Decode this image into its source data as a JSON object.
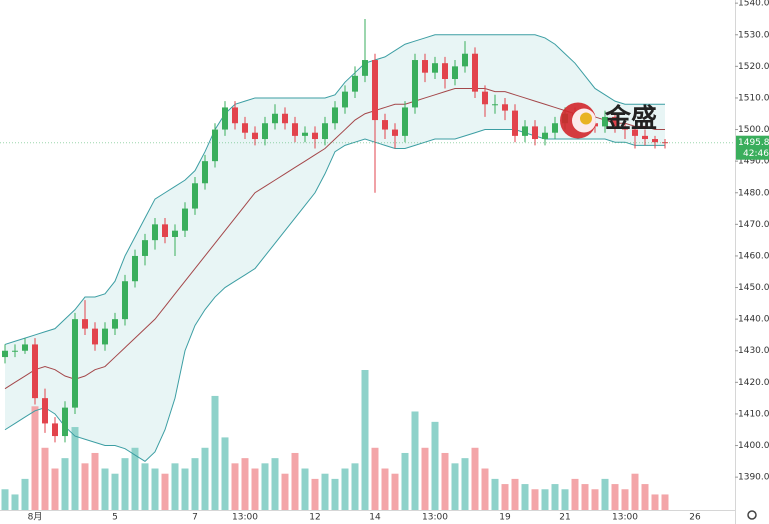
{
  "chart_data": {
    "type": "candlestick",
    "categories": [
      null,
      null,
      null,
      "8月",
      null,
      null,
      null,
      null,
      null,
      null,
      null,
      "5",
      null,
      null,
      null,
      null,
      null,
      null,
      null,
      "7",
      null,
      null,
      null,
      null,
      "13:00",
      null,
      null,
      null,
      null,
      null,
      null,
      "12",
      null,
      null,
      null,
      null,
      null,
      "14",
      null,
      null,
      null,
      null,
      null,
      "13:00",
      null,
      null,
      null,
      null,
      null,
      null,
      "19",
      null,
      null,
      null,
      null,
      null,
      "21",
      null,
      null,
      null,
      null,
      null,
      "13:00",
      null,
      null,
      null,
      null,
      null,
      null,
      "26"
    ],
    "ohlc": [
      [
        1428,
        1432,
        1426,
        1430
      ],
      [
        1430,
        1432,
        1428,
        1430
      ],
      [
        1430,
        1434,
        1429,
        1432
      ],
      [
        1432,
        1434,
        1413,
        1415
      ],
      [
        1415,
        1418,
        1404,
        1407
      ],
      [
        1407,
        1409,
        1401,
        1403
      ],
      [
        1403,
        1414,
        1401,
        1412
      ],
      [
        1412,
        1442,
        1410,
        1440
      ],
      [
        1440,
        1446,
        1435,
        1437
      ],
      [
        1437,
        1439,
        1430,
        1432
      ],
      [
        1432,
        1439,
        1430,
        1437
      ],
      [
        1437,
        1442,
        1435,
        1440
      ],
      [
        1440,
        1454,
        1438,
        1452
      ],
      [
        1452,
        1462,
        1450,
        1460
      ],
      [
        1460,
        1467,
        1457,
        1465
      ],
      [
        1465,
        1472,
        1462,
        1470
      ],
      [
        1470,
        1472,
        1464,
        1466
      ],
      [
        1466,
        1470,
        1460,
        1468
      ],
      [
        1468,
        1477,
        1466,
        1475
      ],
      [
        1475,
        1485,
        1473,
        1483
      ],
      [
        1483,
        1492,
        1481,
        1490
      ],
      [
        1490,
        1502,
        1488,
        1500
      ],
      [
        1500,
        1509,
        1498,
        1507
      ],
      [
        1507,
        1509,
        1500,
        1502
      ],
      [
        1502,
        1504,
        1497,
        1499
      ],
      [
        1499,
        1501,
        1495,
        1497
      ],
      [
        1497,
        1504,
        1495,
        1502
      ],
      [
        1502,
        1508,
        1500,
        1505
      ],
      [
        1505,
        1507,
        1500,
        1502
      ],
      [
        1502,
        1504,
        1496,
        1498
      ],
      [
        1498,
        1501,
        1496,
        1499
      ],
      [
        1499,
        1501,
        1494,
        1497
      ],
      [
        1497,
        1504,
        1495,
        1502
      ],
      [
        1502,
        1509,
        1500,
        1507
      ],
      [
        1507,
        1514,
        1505,
        1512
      ],
      [
        1512,
        1520,
        1510,
        1517
      ],
      [
        1517,
        1535,
        1515,
        1522
      ],
      [
        1522,
        1524,
        1480,
        1503
      ],
      [
        1503,
        1505,
        1497,
        1500
      ],
      [
        1500,
        1502,
        1494,
        1498
      ],
      [
        1498,
        1509,
        1496,
        1507
      ],
      [
        1507,
        1524,
        1505,
        1522
      ],
      [
        1522,
        1524,
        1515,
        1518
      ],
      [
        1518,
        1523,
        1516,
        1521
      ],
      [
        1521,
        1523,
        1513,
        1516
      ],
      [
        1516,
        1522,
        1514,
        1520
      ],
      [
        1520,
        1528,
        1518,
        1524
      ],
      [
        1524,
        1526,
        1510,
        1512
      ],
      [
        1512,
        1514,
        1504,
        1508
      ],
      [
        1508,
        1511,
        1505,
        1508
      ],
      [
        1508,
        1510,
        1503,
        1506
      ],
      [
        1506,
        1508,
        1496,
        1498
      ],
      [
        1498,
        1503,
        1496,
        1501
      ],
      [
        1501,
        1503,
        1495,
        1497
      ],
      [
        1497,
        1501,
        1495,
        1499
      ],
      [
        1499,
        1504,
        1497,
        1502
      ],
      [
        1502,
        1507,
        1500,
        1505
      ],
      [
        1505,
        1507,
        1501,
        1503
      ],
      [
        1503,
        1505,
        1500,
        1502
      ],
      [
        1502,
        1503,
        1499,
        1501
      ],
      [
        1501,
        1506,
        1499,
        1504
      ],
      [
        1504,
        1505,
        1499,
        1501
      ],
      [
        1501,
        1503,
        1497,
        1500
      ],
      [
        1500,
        1501,
        1494,
        1498
      ],
      [
        1498,
        1500,
        1495,
        1497
      ],
      [
        1497,
        1498,
        1494,
        1496
      ],
      [
        1496,
        1497,
        1494,
        1495.84
      ],
      null,
      null,
      null
    ],
    "volume": [
      20,
      15,
      30,
      100,
      60,
      40,
      50,
      80,
      45,
      55,
      40,
      35,
      50,
      60,
      45,
      40,
      35,
      45,
      40,
      50,
      60,
      110,
      70,
      45,
      50,
      40,
      45,
      50,
      35,
      55,
      40,
      30,
      35,
      30,
      40,
      45,
      135,
      60,
      40,
      35,
      55,
      95,
      60,
      85,
      55,
      45,
      50,
      60,
      40,
      30,
      25,
      30,
      25,
      20,
      20,
      25,
      20,
      30,
      25,
      20,
      30,
      25,
      20,
      35,
      25,
      15,
      15,
      null,
      null,
      null
    ],
    "bands": [
      {
        "name": "upper",
        "color": "#3c9ea3",
        "values": [
          1432,
          1433,
          1434,
          1435,
          1436,
          1437,
          1440,
          1443,
          1447,
          1447,
          1448,
          1452,
          1460,
          1466,
          1472,
          1478,
          1480,
          1482,
          1484,
          1487,
          1493,
          1500,
          1505,
          1508,
          1509,
          1510,
          1510,
          1510,
          1510,
          1510,
          1510,
          1510,
          1510,
          1511,
          1515,
          1518,
          1521,
          1522,
          1523,
          1525,
          1527,
          1528,
          1529,
          1530,
          1530,
          1530,
          1530,
          1530,
          1530,
          1530,
          1530,
          1530,
          1530,
          1530,
          1529,
          1527,
          1524,
          1521,
          1517,
          1513,
          1511,
          1509,
          1508,
          1508,
          1508,
          1508,
          1508,
          null,
          null,
          null
        ]
      },
      {
        "name": "middle",
        "color": "#a4474a",
        "values": [
          1418,
          1420,
          1422,
          1424,
          1425,
          1424,
          1422,
          1421,
          1422,
          1424,
          1425,
          1428,
          1431,
          1434,
          1437,
          1440,
          1444,
          1448,
          1452,
          1456,
          1460,
          1464,
          1468,
          1472,
          1476,
          1480,
          1482,
          1484,
          1486,
          1488,
          1490,
          1492,
          1494,
          1497,
          1500,
          1503,
          1505,
          1506,
          1507,
          1508,
          1508,
          1509,
          1510,
          1511,
          1512,
          1513,
          1513,
          1513,
          1513,
          1512,
          1512,
          1511,
          1510,
          1509,
          1508,
          1507,
          1506,
          1505,
          1505,
          1504,
          1503,
          1502,
          1502,
          1501,
          1501,
          1500,
          1500,
          null,
          null,
          null
        ]
      },
      {
        "name": "lower",
        "color": "#3c9ea3",
        "values": [
          1405,
          1407,
          1409,
          1411,
          1412,
          1410,
          1406,
          1403,
          1402,
          1401,
          1400,
          1400,
          1399,
          1397,
          1395,
          1398,
          1405,
          1415,
          1430,
          1438,
          1443,
          1447,
          1450,
          1452,
          1454,
          1456,
          1460,
          1464,
          1468,
          1472,
          1476,
          1480,
          1486,
          1493,
          1495,
          1496,
          1497,
          1496,
          1495,
          1494,
          1494,
          1495,
          1496,
          1497,
          1497,
          1497,
          1498,
          1499,
          1500,
          1500,
          1500,
          1500,
          1499,
          1498,
          1497,
          1497,
          1497,
          1497,
          1497,
          1497,
          1497,
          1496,
          1496,
          1495,
          1495,
          1495,
          1495,
          null,
          null,
          null
        ]
      }
    ],
    "band_fill": "#e8f5f5",
    "up_color": "#3aae5c",
    "down_color": "#e2434c",
    "volume_up_color": "#8fd2ca",
    "volume_down_color": "#f3a5a8",
    "ylim": [
      1379.6,
      1541
    ],
    "yticks": [
      {
        "value": 1390,
        "label": "1390.00"
      },
      {
        "value": 1400,
        "label": "1400.00"
      },
      {
        "value": 1410,
        "label": "1410.00"
      },
      {
        "value": 1420,
        "label": "1420.00"
      },
      {
        "value": 1430,
        "label": "1430.00"
      },
      {
        "value": 1440,
        "label": "1440.00"
      },
      {
        "value": 1450,
        "label": "1450.00"
      },
      {
        "value": 1460,
        "label": "1460.00"
      },
      {
        "value": 1470,
        "label": "1470.00"
      },
      {
        "value": 1480,
        "label": "1480.00"
      },
      {
        "value": 1490,
        "label": "1490.00"
      },
      {
        "value": 1500,
        "label": "1500.00"
      },
      {
        "value": 1510,
        "label": "1510.00"
      },
      {
        "value": 1520,
        "label": "1520.00"
      },
      {
        "value": 1530,
        "label": "1530.00"
      },
      {
        "value": 1540,
        "label": "1540.00"
      }
    ],
    "grid": false,
    "last_price": 1495.84,
    "countdown": "42:46",
    "watermark": "金盛"
  }
}
